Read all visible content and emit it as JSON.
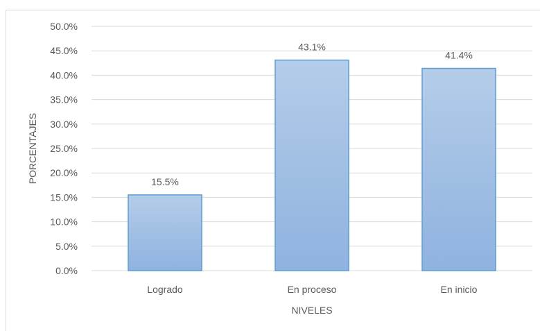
{
  "chart_data": {
    "type": "bar",
    "categories": [
      "Logrado",
      "En proceso",
      "En inicio"
    ],
    "values": [
      15.5,
      43.1,
      41.4
    ],
    "data_labels": [
      "15.5%",
      "43.1%",
      "41.4%"
    ],
    "xlabel": "NIVELES",
    "ylabel": "PORCENTAJES",
    "ylim": [
      0,
      50
    ],
    "yticks": [
      "0.0%",
      "5.0%",
      "10.0%",
      "15.0%",
      "20.0%",
      "25.0%",
      "30.0%",
      "35.0%",
      "40.0%",
      "45.0%",
      "50.0%"
    ],
    "grid": true,
    "colors": {
      "bar_top": "#b4cde9",
      "bar_bottom": "#8fb2df",
      "bar_border": "#5b9bd5",
      "grid": "#d9d9d9"
    }
  }
}
